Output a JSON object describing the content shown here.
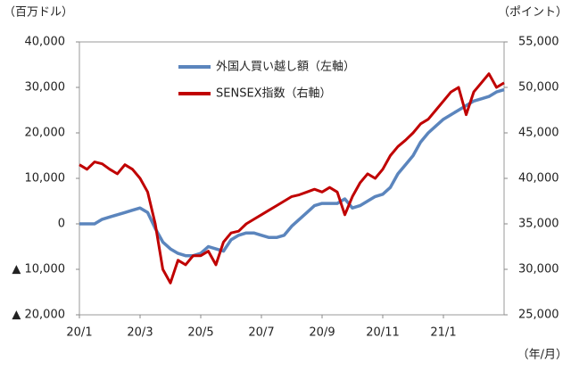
{
  "chart_data": {
    "type": "line",
    "y_axis_label": "（百万ドル）",
    "y2_axis_label": "（ポイント）",
    "x_axis_label": "（年/月）",
    "categories": [
      "20/1",
      null,
      null,
      null,
      null,
      null,
      null,
      null,
      "20/3",
      null,
      null,
      null,
      null,
      null,
      null,
      null,
      "20/5",
      null,
      null,
      null,
      null,
      null,
      null,
      null,
      "20/7",
      null,
      null,
      null,
      null,
      null,
      null,
      null,
      "20/9",
      null,
      null,
      null,
      null,
      null,
      null,
      null,
      "20/11",
      null,
      null,
      null,
      null,
      null,
      null,
      null,
      "21/1",
      null,
      null,
      null,
      null,
      null,
      null,
      null,
      null
    ],
    "series": [
      {
        "name": "外国人買い越し額（左軸）",
        "color": "#5b85bd",
        "axis": "y",
        "values": [
          0,
          0,
          0,
          1000,
          1500,
          2000,
          2500,
          3000,
          3500,
          2500,
          -1000,
          -4000,
          -5500,
          -6500,
          -7000,
          -7000,
          -6500,
          -5000,
          -5500,
          -6000,
          -3500,
          -2500,
          -2000,
          -2000,
          -2500,
          -3000,
          -3000,
          -2500,
          -500,
          1000,
          2500,
          4000,
          4500,
          4500,
          4500,
          5500,
          3500,
          4000,
          5000,
          6000,
          6500,
          8000,
          11000,
          13000,
          15000,
          18000,
          20000,
          21500,
          23000,
          24000,
          25000,
          26000,
          27000,
          27500,
          28000,
          29000,
          29500
        ]
      },
      {
        "name": "SENSEX指数（右軸）",
        "color": "#c00000",
        "axis": "y2",
        "values": [
          41500,
          41000,
          41800,
          41600,
          41000,
          40500,
          41500,
          41000,
          40000,
          38500,
          35000,
          30000,
          28500,
          31000,
          30500,
          31500,
          31500,
          32000,
          30500,
          33000,
          34000,
          34200,
          35000,
          35500,
          36000,
          36500,
          37000,
          37500,
          38000,
          38200,
          38500,
          38800,
          38500,
          39000,
          38500,
          36000,
          38000,
          39500,
          40500,
          40000,
          41000,
          42500,
          43500,
          44200,
          45000,
          46000,
          46500,
          47500,
          48500,
          49500,
          50000,
          47000,
          49500,
          50500,
          51500,
          50000,
          50500
        ]
      }
    ],
    "ylim": [
      -20000,
      40000
    ],
    "yticks": [
      {
        "value": -20000,
        "label": "▲ 20,000"
      },
      {
        "value": -10000,
        "label": "▲ 10,000"
      },
      0,
      {
        "value": 10000,
        "label": "10,000"
      },
      {
        "value": 20000,
        "label": "20,000"
      },
      {
        "value": 30000,
        "label": "30,000"
      },
      {
        "value": 40000,
        "label": "40,000"
      }
    ],
    "y2lim": [
      25000,
      55000
    ],
    "y2ticks": [
      {
        "value": 25000,
        "label": "25,000"
      },
      {
        "value": 30000,
        "label": "30,000"
      },
      {
        "value": 35000,
        "label": "35,000"
      },
      {
        "value": 40000,
        "label": "40,000"
      },
      {
        "value": 45000,
        "label": "45,000"
      },
      {
        "value": 50000,
        "label": "50,000"
      },
      {
        "value": 55000,
        "label": "55,000"
      }
    ],
    "grid": false,
    "legend": "top-left"
  }
}
